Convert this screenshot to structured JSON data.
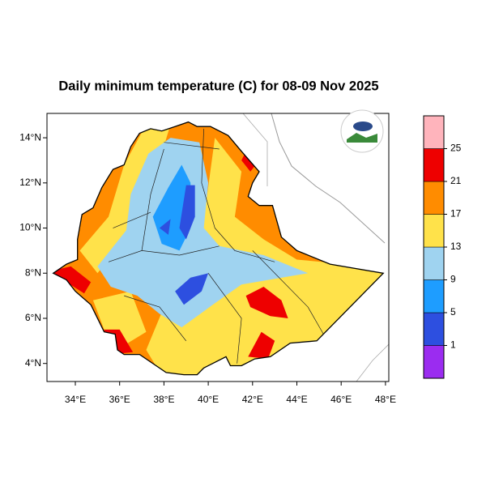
{
  "chart_data": {
    "type": "map",
    "title": "Daily minimum temperature (C) for 08-09 Nov 2025",
    "xlim": [
      32.72,
      48.15
    ],
    "ylim": [
      3.2,
      15.08
    ],
    "xticks": [
      {
        "value": 34,
        "label": "34°E"
      },
      {
        "value": 36,
        "label": "36°E"
      },
      {
        "value": 38,
        "label": "38°E"
      },
      {
        "value": 40,
        "label": "40°E"
      },
      {
        "value": 42,
        "label": "42°E"
      },
      {
        "value": 44,
        "label": "44°E"
      },
      {
        "value": 46,
        "label": "46°E"
      },
      {
        "value": 48,
        "label": "48°E"
      }
    ],
    "yticks": [
      {
        "value": 4,
        "label": "4°N"
      },
      {
        "value": 6,
        "label": "6°N"
      },
      {
        "value": 8,
        "label": "8°N"
      },
      {
        "value": 10,
        "label": "10°N"
      },
      {
        "value": 12,
        "label": "12°N"
      },
      {
        "value": 14,
        "label": "14°N"
      }
    ],
    "colorbar": {
      "levels": [
        1,
        5,
        9,
        13,
        17,
        21,
        25
      ],
      "colors": [
        "#9b2cf0",
        "#2d4fe0",
        "#1e9dff",
        "#9fd3f0",
        "#ffe24a",
        "#ff8c00",
        "#ee0000",
        "#ffb4bc"
      ]
    }
  }
}
